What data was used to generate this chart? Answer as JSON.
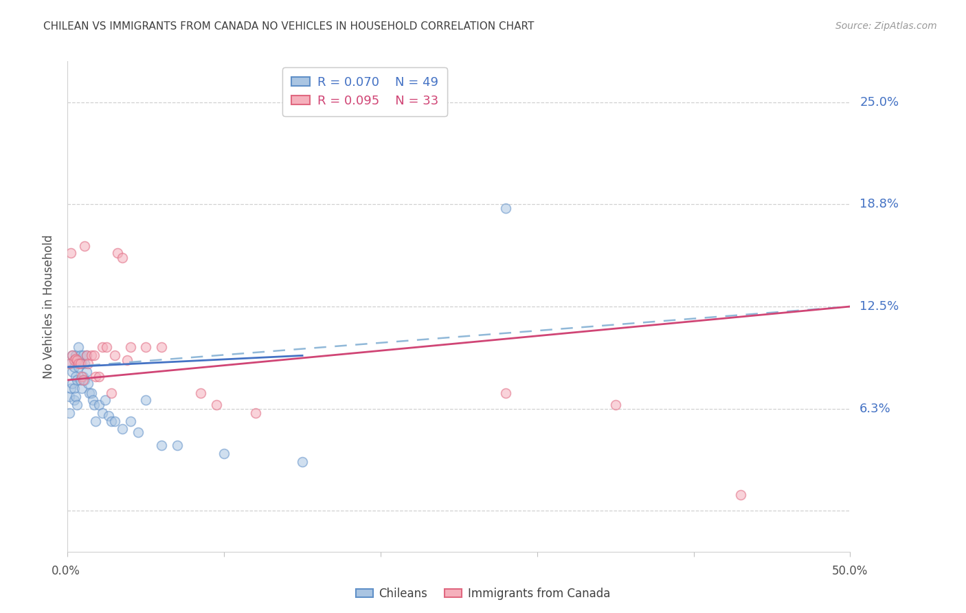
{
  "title": "CHILEAN VS IMMIGRANTS FROM CANADA NO VEHICLES IN HOUSEHOLD CORRELATION CHART",
  "source": "Source: ZipAtlas.com",
  "ylabel": "No Vehicles in Household",
  "xlim": [
    0.0,
    0.5
  ],
  "ylim": [
    -0.025,
    0.275
  ],
  "legend_blue_r": "R = 0.070",
  "legend_blue_n": "N = 49",
  "legend_pink_r": "R = 0.095",
  "legend_pink_n": "N = 33",
  "blue_scatter_color": "#aac5e2",
  "blue_edge_color": "#6090c8",
  "pink_scatter_color": "#f5b0bc",
  "pink_edge_color": "#e06880",
  "blue_line_color": "#4472c4",
  "pink_line_color": "#d04575",
  "dashed_line_color": "#90b8d8",
  "ytick_label_color": "#4472c4",
  "title_color": "#404040",
  "source_color": "#999999",
  "grid_color": "#d0d0d0",
  "ytick_vals": [
    0.0,
    0.0625,
    0.125,
    0.1875,
    0.25
  ],
  "ytick_labels": [
    "",
    "6.3%",
    "12.5%",
    "18.8%",
    "25.0%"
  ],
  "chileans_x": [
    0.001,
    0.001,
    0.002,
    0.002,
    0.003,
    0.003,
    0.003,
    0.004,
    0.004,
    0.004,
    0.005,
    0.005,
    0.005,
    0.006,
    0.006,
    0.006,
    0.007,
    0.007,
    0.008,
    0.008,
    0.009,
    0.009,
    0.01,
    0.01,
    0.011,
    0.011,
    0.012,
    0.012,
    0.013,
    0.014,
    0.015,
    0.016,
    0.017,
    0.018,
    0.02,
    0.022,
    0.024,
    0.026,
    0.028,
    0.03,
    0.035,
    0.04,
    0.045,
    0.05,
    0.06,
    0.07,
    0.1,
    0.15,
    0.28
  ],
  "chileans_y": [
    0.07,
    0.06,
    0.09,
    0.075,
    0.095,
    0.085,
    0.078,
    0.088,
    0.075,
    0.068,
    0.095,
    0.082,
    0.07,
    0.092,
    0.08,
    0.065,
    0.1,
    0.088,
    0.095,
    0.08,
    0.09,
    0.075,
    0.095,
    0.082,
    0.09,
    0.08,
    0.095,
    0.085,
    0.078,
    0.072,
    0.072,
    0.068,
    0.065,
    0.055,
    0.065,
    0.06,
    0.068,
    0.058,
    0.055,
    0.055,
    0.05,
    0.055,
    0.048,
    0.068,
    0.04,
    0.04,
    0.035,
    0.03,
    0.185
  ],
  "immigrants_x": [
    0.001,
    0.002,
    0.003,
    0.004,
    0.005,
    0.006,
    0.007,
    0.008,
    0.009,
    0.01,
    0.011,
    0.012,
    0.013,
    0.015,
    0.017,
    0.018,
    0.02,
    0.022,
    0.025,
    0.028,
    0.03,
    0.032,
    0.035,
    0.038,
    0.04,
    0.05,
    0.06,
    0.085,
    0.095,
    0.12,
    0.28,
    0.35,
    0.43
  ],
  "immigrants_y": [
    0.09,
    0.158,
    0.095,
    0.092,
    0.093,
    0.092,
    0.09,
    0.09,
    0.082,
    0.08,
    0.162,
    0.095,
    0.09,
    0.095,
    0.095,
    0.082,
    0.082,
    0.1,
    0.1,
    0.072,
    0.095,
    0.158,
    0.155,
    0.092,
    0.1,
    0.1,
    0.1,
    0.072,
    0.065,
    0.06,
    0.072,
    0.065,
    0.01
  ],
  "blue_trend": [
    0.088,
    0.095
  ],
  "pink_trend": [
    0.08,
    0.125
  ],
  "dashed_trend": [
    0.088,
    0.125
  ],
  "marker_size": 100,
  "marker_alpha": 0.55,
  "marker_linewidth": 1.2
}
